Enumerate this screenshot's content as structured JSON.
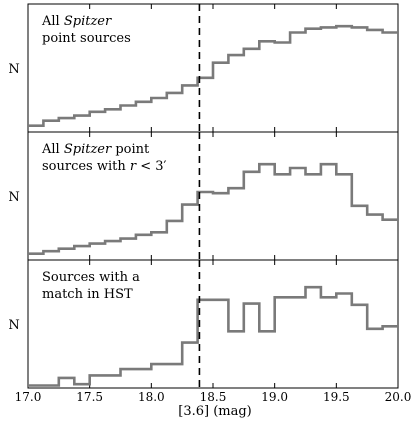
{
  "chart_data": {
    "type": "step-histogram",
    "xlabel": "[3.6] (mag)",
    "xlim": [
      17.0,
      20.0
    ],
    "xticks": [
      17.0,
      17.5,
      18.0,
      18.5,
      19.0,
      19.5,
      20.0
    ],
    "xtick_labels": [
      "17.0",
      "17.5",
      "18.0",
      "18.5",
      "19.0",
      "19.5",
      "20.0"
    ],
    "ylabel": "N",
    "bin_edges": [
      17.0,
      17.125,
      17.25,
      17.375,
      17.5,
      17.625,
      17.75,
      17.875,
      18.0,
      18.125,
      18.25,
      18.375,
      18.5,
      18.625,
      18.75,
      18.875,
      19.0,
      19.125,
      19.25,
      19.375,
      19.5,
      19.625,
      19.75,
      19.875,
      20.0
    ],
    "vertical_line": {
      "x": 18.39,
      "style": "dashed"
    },
    "line_color": "#7a7a7a",
    "panels": [
      {
        "label_lines": [
          [
            {
              "text": "All ",
              "italic": false
            },
            {
              "text": "Spitzer",
              "italic": true
            }
          ],
          [
            {
              "text": "point sources",
              "italic": false
            }
          ]
        ],
        "ylim": [
          0,
          100
        ],
        "counts": [
          5,
          9,
          11,
          13,
          16,
          18,
          21,
          24,
          27,
          31,
          37,
          43,
          55,
          61,
          66,
          72,
          71,
          79,
          82,
          83,
          84,
          83,
          81,
          79
        ]
      },
      {
        "label_lines": [
          [
            {
              "text": "All ",
              "italic": false
            },
            {
              "text": "Spitzer",
              "italic": true
            },
            {
              "text": " point",
              "italic": false
            }
          ],
          [
            {
              "text": "sources with ",
              "italic": false
            },
            {
              "text": "r",
              "italic": true
            },
            {
              "text": " < 3′",
              "italic": false
            }
          ]
        ],
        "ylim": [
          0,
          100
        ],
        "counts": [
          5,
          7,
          9,
          11,
          13,
          15,
          17,
          20,
          22,
          31,
          44,
          54,
          53,
          57,
          70,
          76,
          68,
          73,
          68,
          76,
          68,
          43,
          36,
          32
        ]
      },
      {
        "label_lines": [
          [
            {
              "text": "Sources with a",
              "italic": false
            }
          ]
        ],
        "label_lines_extra": [
          [
            {
              "text": "match in HST",
              "italic": false
            }
          ]
        ],
        "ylim": [
          0,
          100
        ],
        "counts": [
          2,
          2,
          8,
          3,
          10,
          10,
          15,
          15,
          19,
          19,
          36,
          70,
          70,
          45,
          67,
          45,
          72,
          72,
          80,
          72,
          75,
          66,
          47,
          49
        ]
      }
    ]
  }
}
